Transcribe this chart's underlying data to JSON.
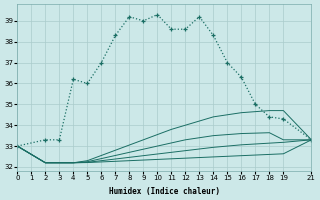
{
  "xlabel": "Humidex (Indice chaleur)",
  "xlim": [
    0,
    21
  ],
  "ylim": [
    31.8,
    39.8
  ],
  "yticks": [
    32,
    33,
    34,
    35,
    36,
    37,
    38,
    39
  ],
  "xticks": [
    0,
    1,
    2,
    3,
    4,
    5,
    6,
    7,
    8,
    9,
    10,
    11,
    12,
    13,
    14,
    15,
    16,
    17,
    18,
    19,
    21
  ],
  "background_color": "#cce8e8",
  "grid_color": "#aacccc",
  "line_color": "#1a6e64",
  "upper": [
    [
      0,
      33.0
    ],
    [
      2,
      33.3
    ],
    [
      3,
      33.3
    ],
    [
      4,
      36.2
    ],
    [
      5,
      36.0
    ],
    [
      6,
      37.0
    ],
    [
      7,
      38.3
    ],
    [
      8,
      39.2
    ],
    [
      9,
      39.0
    ],
    [
      10,
      39.3
    ],
    [
      11,
      38.6
    ],
    [
      12,
      38.6
    ],
    [
      13,
      39.2
    ],
    [
      14,
      38.3
    ],
    [
      15,
      37.0
    ],
    [
      16,
      36.3
    ],
    [
      17,
      35.0
    ],
    [
      18,
      34.4
    ],
    [
      19,
      34.3
    ],
    [
      21,
      33.3
    ]
  ],
  "lower_curves": [
    [
      [
        0,
        33.0
      ],
      [
        2,
        32.2
      ],
      [
        3,
        32.2
      ],
      [
        4,
        32.2
      ],
      [
        5,
        32.3
      ],
      [
        6,
        32.55
      ],
      [
        7,
        32.8
      ],
      [
        8,
        33.05
      ],
      [
        9,
        33.3
      ],
      [
        10,
        33.55
      ],
      [
        11,
        33.8
      ],
      [
        12,
        34.0
      ],
      [
        13,
        34.2
      ],
      [
        14,
        34.4
      ],
      [
        15,
        34.5
      ],
      [
        16,
        34.6
      ],
      [
        17,
        34.65
      ],
      [
        18,
        34.7
      ],
      [
        19,
        34.7
      ],
      [
        21,
        33.3
      ]
    ],
    [
      [
        0,
        33.0
      ],
      [
        2,
        32.2
      ],
      [
        3,
        32.2
      ],
      [
        4,
        32.2
      ],
      [
        5,
        32.25
      ],
      [
        6,
        32.4
      ],
      [
        7,
        32.55
      ],
      [
        8,
        32.7
      ],
      [
        9,
        32.85
      ],
      [
        10,
        33.0
      ],
      [
        11,
        33.15
      ],
      [
        12,
        33.3
      ],
      [
        13,
        33.4
      ],
      [
        14,
        33.5
      ],
      [
        15,
        33.55
      ],
      [
        16,
        33.6
      ],
      [
        17,
        33.62
      ],
      [
        18,
        33.64
      ],
      [
        19,
        33.3
      ],
      [
        21,
        33.3
      ]
    ],
    [
      [
        0,
        33.0
      ],
      [
        2,
        32.2
      ],
      [
        3,
        32.2
      ],
      [
        4,
        32.2
      ],
      [
        5,
        32.22
      ],
      [
        6,
        32.3
      ],
      [
        7,
        32.38
      ],
      [
        8,
        32.46
      ],
      [
        9,
        32.54
      ],
      [
        10,
        32.62
      ],
      [
        11,
        32.7
      ],
      [
        12,
        32.78
      ],
      [
        13,
        32.86
      ],
      [
        14,
        32.94
      ],
      [
        15,
        33.0
      ],
      [
        16,
        33.06
      ],
      [
        17,
        33.1
      ],
      [
        18,
        33.14
      ],
      [
        19,
        33.18
      ],
      [
        21,
        33.3
      ]
    ],
    [
      [
        0,
        33.0
      ],
      [
        2,
        32.2
      ],
      [
        3,
        32.2
      ],
      [
        4,
        32.2
      ],
      [
        5,
        32.21
      ],
      [
        6,
        32.24
      ],
      [
        7,
        32.27
      ],
      [
        8,
        32.3
      ],
      [
        9,
        32.33
      ],
      [
        10,
        32.36
      ],
      [
        11,
        32.39
      ],
      [
        12,
        32.42
      ],
      [
        13,
        32.45
      ],
      [
        14,
        32.48
      ],
      [
        15,
        32.51
      ],
      [
        16,
        32.54
      ],
      [
        17,
        32.57
      ],
      [
        18,
        32.6
      ],
      [
        19,
        32.63
      ],
      [
        21,
        33.3
      ]
    ]
  ]
}
